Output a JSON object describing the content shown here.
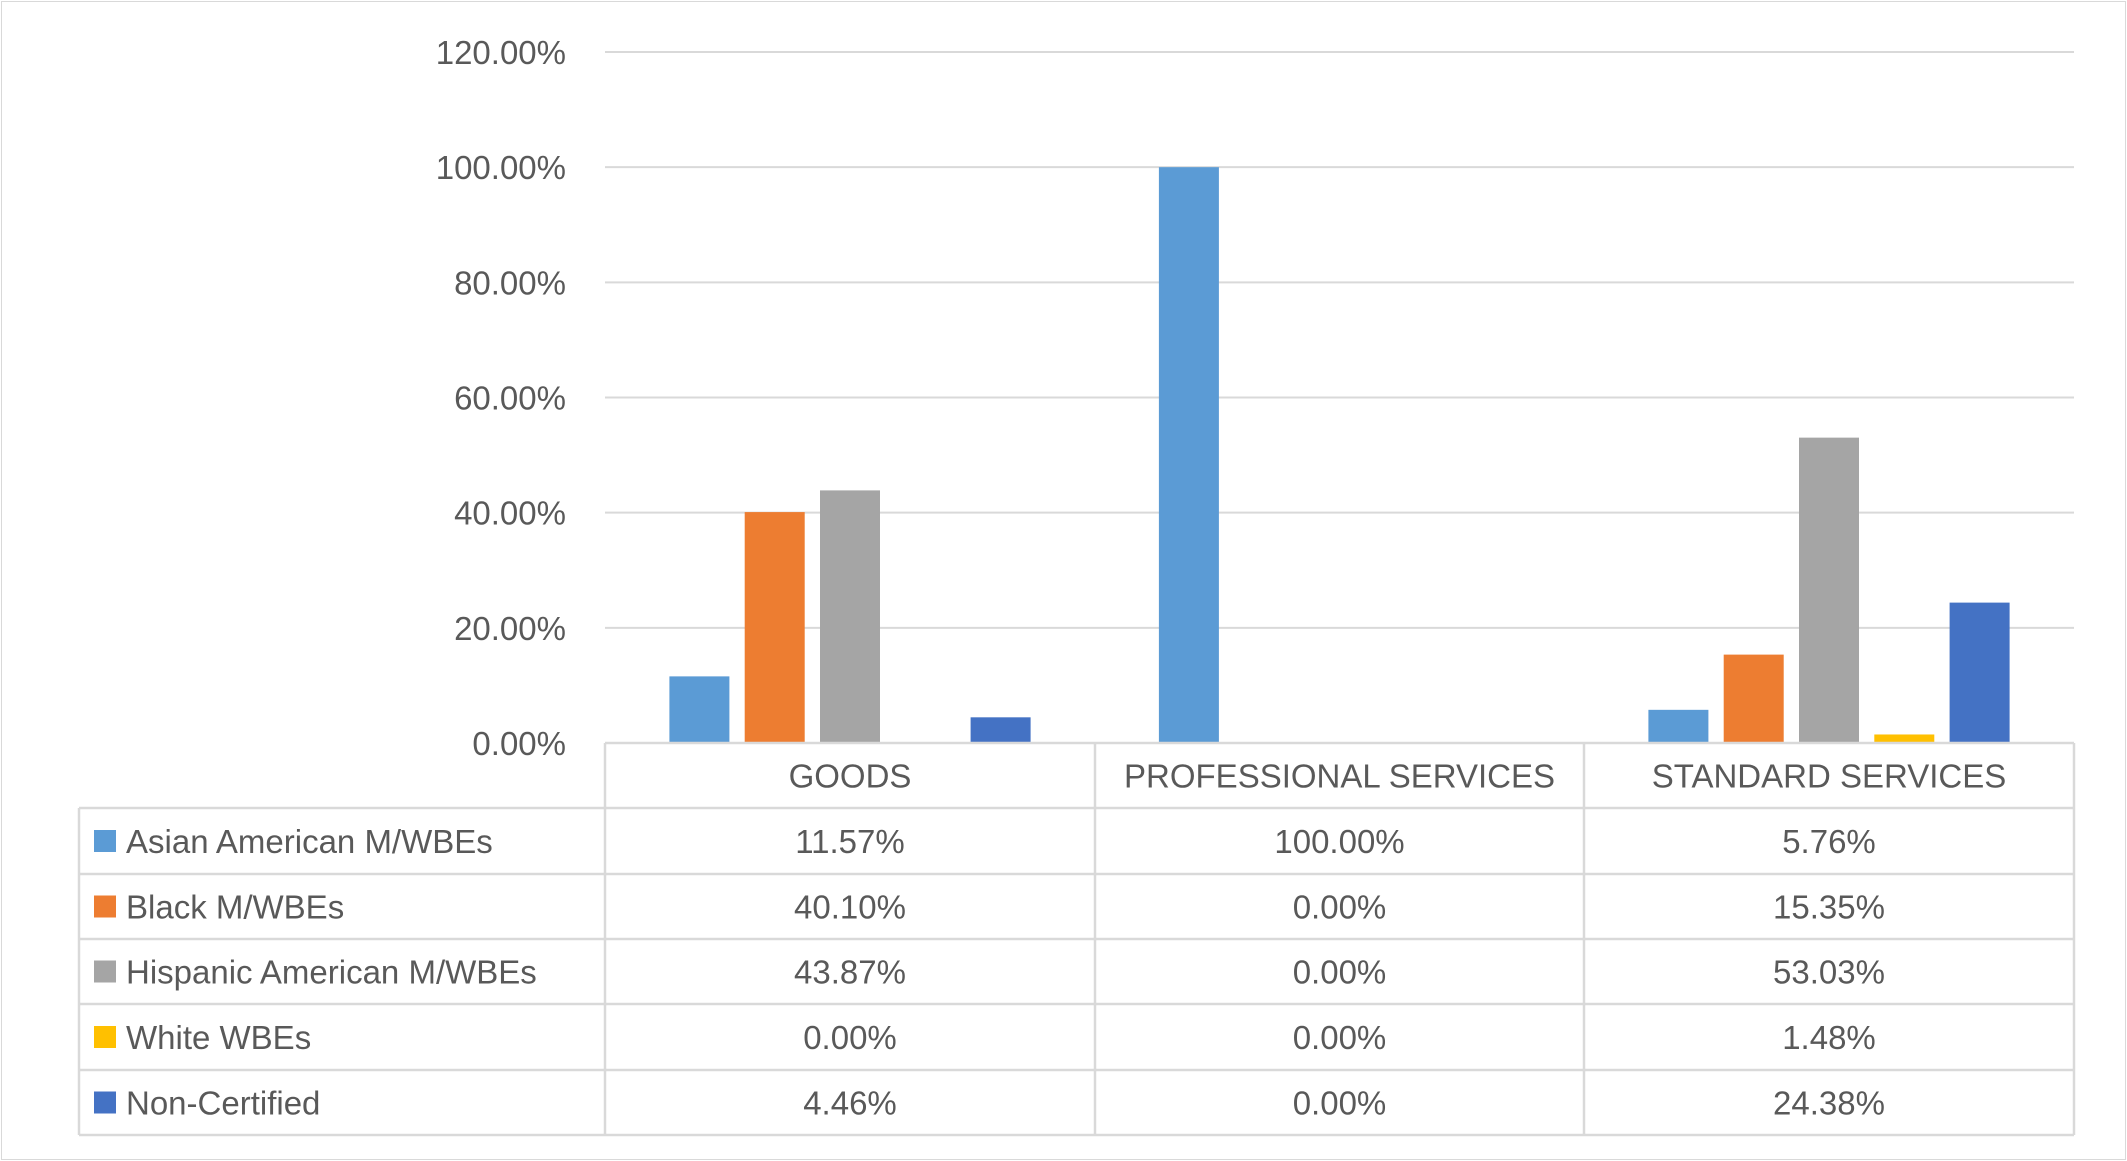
{
  "chart_data": {
    "type": "bar",
    "title": "",
    "xlabel": "",
    "ylabel": "",
    "ylim": [
      0,
      120
    ],
    "yticks": [
      "0.00%",
      "20.00%",
      "40.00%",
      "60.00%",
      "80.00%",
      "100.00%",
      "120.00%"
    ],
    "grid": true,
    "legend": "data-table-bottom",
    "categories": [
      "GOODS",
      "PROFESSIONAL SERVICES",
      "STANDARD SERVICES"
    ],
    "series": [
      {
        "name": "Asian American M/WBEs",
        "color": "#5b9bd5",
        "values": [
          11.57,
          100.0,
          5.76
        ],
        "labels": [
          "11.57%",
          "100.00%",
          "5.76%"
        ]
      },
      {
        "name": "Black M/WBEs",
        "color": "#ed7d31",
        "values": [
          40.1,
          0.0,
          15.35
        ],
        "labels": [
          "40.10%",
          "0.00%",
          "15.35%"
        ]
      },
      {
        "name": "Hispanic American M/WBEs",
        "color": "#a5a5a5",
        "values": [
          43.87,
          0.0,
          53.03
        ],
        "labels": [
          "43.87%",
          "0.00%",
          "53.03%"
        ]
      },
      {
        "name": "White WBEs",
        "color": "#ffc000",
        "values": [
          0.0,
          0.0,
          1.48
        ],
        "labels": [
          "0.00%",
          "0.00%",
          "1.48%"
        ]
      },
      {
        "name": "Non-Certified",
        "color": "#4472c4",
        "values": [
          4.46,
          0.0,
          24.38
        ],
        "labels": [
          "4.46%",
          "0.00%",
          "24.38%"
        ]
      }
    ]
  }
}
